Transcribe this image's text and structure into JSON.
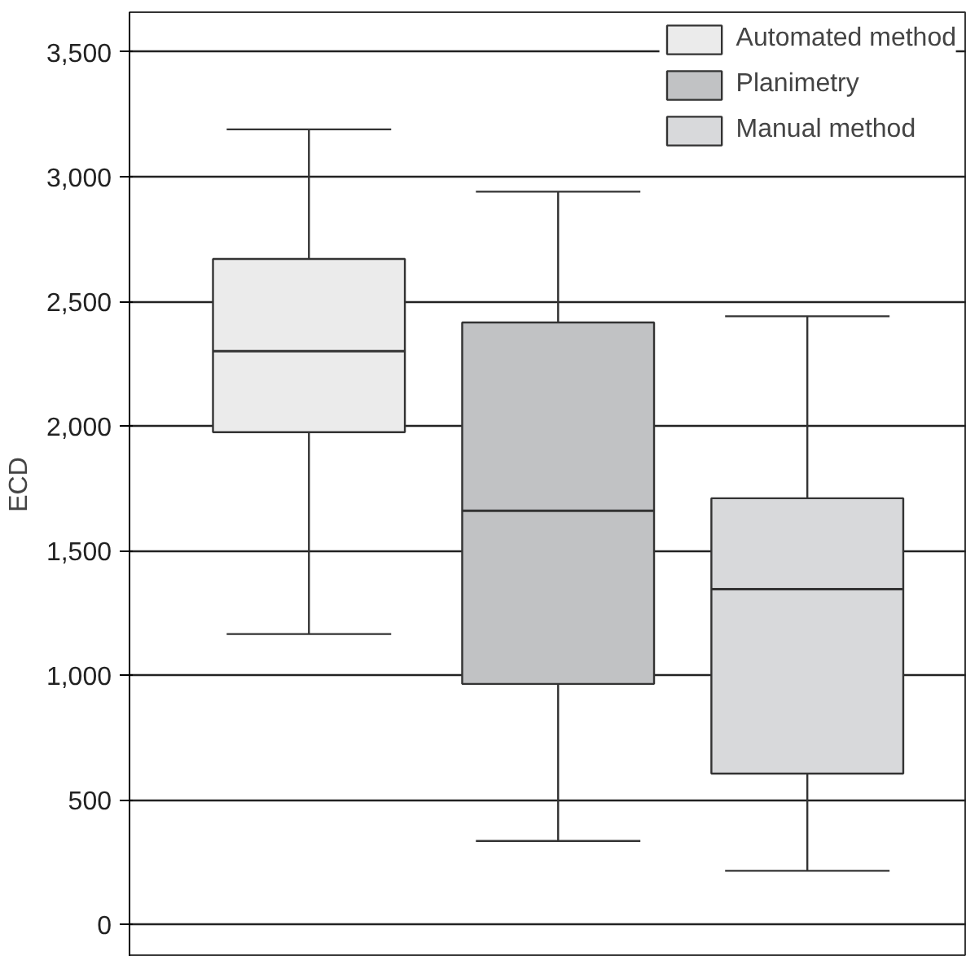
{
  "chart_data": {
    "type": "box",
    "ylabel": "ECD",
    "categories": [
      null,
      null,
      null
    ],
    "series": [
      {
        "name": "Automated method",
        "color": "#ebebeb",
        "boxes": [
          {
            "low": 1165,
            "q1": 1975,
            "median": 2300,
            "q3": 2670,
            "high": 3190
          },
          null,
          null
        ]
      },
      {
        "name": "Planimetry",
        "color": "#c1c2c4",
        "boxes": [
          null,
          {
            "low": 335,
            "q1": 965,
            "median": 1660,
            "q3": 2415,
            "high": 2940
          },
          null
        ]
      },
      {
        "name": "Manual method",
        "color": "#d8d9db",
        "boxes": [
          null,
          null,
          {
            "low": 215,
            "q1": 605,
            "median": 1345,
            "q3": 1710,
            "high": 2440
          }
        ]
      }
    ],
    "ylim": [
      -130,
      3660
    ],
    "yticks": [
      {
        "value": 0,
        "label": "0"
      },
      {
        "value": 500,
        "label": "500"
      },
      {
        "value": 1000,
        "label": "1,000"
      },
      {
        "value": 1500,
        "label": "1,500"
      },
      {
        "value": 2000,
        "label": "2,000"
      },
      {
        "value": 2500,
        "label": "2,500"
      },
      {
        "value": 3000,
        "label": "3,000"
      },
      {
        "value": 3500,
        "label": "3,500"
      }
    ],
    "grid": "y",
    "legend": "top right",
    "tick_labels": "y"
  }
}
